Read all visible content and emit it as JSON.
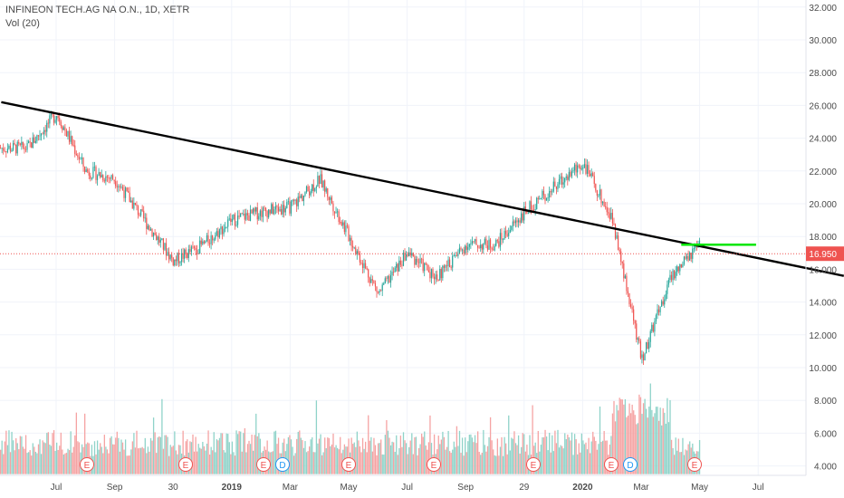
{
  "header": {
    "symbol_label": "INFINEON TECH.AG NA O.N., 1D, XETR",
    "volume_label": "Vol (20)"
  },
  "price_badge": "16.950",
  "colors": {
    "up": "#26a69a",
    "down": "#ef5350",
    "up_vol": "#8fd3c9",
    "down_vol": "#f5a3a3",
    "trendline": "#000000",
    "level": "#00e600",
    "badge": "#ef5350",
    "grid": "#f0f3fa",
    "axis_border": "#e0e3eb"
  },
  "chart_data": {
    "type": "candlestick",
    "title": "INFINEON TECH.AG NA O.N., 1D, XETR",
    "y_axis_ticks": [
      "32.000",
      "30.000",
      "28.000",
      "26.000",
      "24.000",
      "22.000",
      "20.000",
      "18.000",
      "16.000",
      "14.000",
      "12.000",
      "10.000",
      "8.000",
      "6.000",
      "4.000"
    ],
    "x_axis_ticks": [
      "Jul",
      "Sep",
      "30",
      "2019",
      "Mar",
      "May",
      "Jul",
      "Sep",
      "29",
      "2020",
      "Mar",
      "May",
      "Jul"
    ],
    "ylim": [
      3.5,
      32.3
    ],
    "grid": true,
    "last_price": 16.95,
    "price_keypoints": [
      {
        "month": "2018-06",
        "price": 23.4
      },
      {
        "month": "2018-07",
        "price": 25.5
      },
      {
        "month": "2018-08",
        "price": 22.0
      },
      {
        "month": "2018-09",
        "price": 21.5
      },
      {
        "month": "2018-10",
        "price": 19.0
      },
      {
        "month": "2018-11",
        "price": 16.5
      },
      {
        "month": "2018-12",
        "price": 17.5
      },
      {
        "month": "2019-01",
        "price": 19.0
      },
      {
        "month": "2019-02",
        "price": 19.5
      },
      {
        "month": "2019-03",
        "price": 19.8
      },
      {
        "month": "2019-04",
        "price": 21.5
      },
      {
        "month": "2019-05",
        "price": 18.0
      },
      {
        "month": "2019-06",
        "price": 14.5
      },
      {
        "month": "2019-07",
        "price": 17.0
      },
      {
        "month": "2019-08",
        "price": 15.5
      },
      {
        "month": "2019-09",
        "price": 17.5
      },
      {
        "month": "2019-10",
        "price": 17.5
      },
      {
        "month": "2019-11",
        "price": 19.5
      },
      {
        "month": "2019-12",
        "price": 21.0
      },
      {
        "month": "2020-01",
        "price": 22.5
      },
      {
        "month": "2020-02",
        "price": 19.0
      },
      {
        "month": "2020-03",
        "price": 10.5
      },
      {
        "month": "2020-04",
        "price": 15.5
      },
      {
        "month": "2020-05",
        "price": 17.5
      }
    ],
    "trendline": {
      "from": {
        "month": "2018-05",
        "price": 26.2
      },
      "to": {
        "month": "2020-09",
        "price": 15.6
      }
    },
    "horizontal_level": {
      "from_month": "2020-04",
      "to_month": "2020-06",
      "price": 17.5
    },
    "volume_range": [
      3.5,
      10.5
    ],
    "event_markers": [
      {
        "label": "E",
        "month": "2018-07"
      },
      {
        "label": "E",
        "month": "2018-11"
      },
      {
        "label": "E",
        "month": "2019-03"
      },
      {
        "label": "D",
        "month": "2019-03"
      },
      {
        "label": "E",
        "month": "2019-05"
      },
      {
        "label": "E",
        "month": "2019-08"
      },
      {
        "label": "E",
        "month": "2019-11"
      },
      {
        "label": "E",
        "month": "2020-02"
      },
      {
        "label": "D",
        "month": "2020-02"
      },
      {
        "label": "E",
        "month": "2020-05"
      }
    ]
  }
}
